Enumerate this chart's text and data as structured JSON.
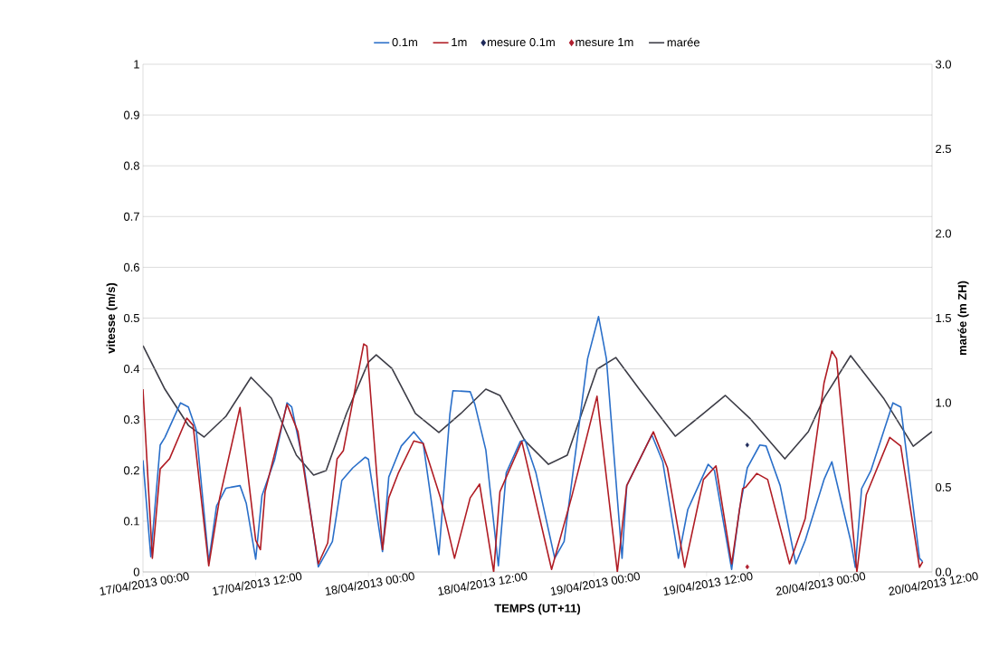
{
  "chart_data": {
    "type": "line",
    "xlabel": "TEMPS (UT+11)",
    "ylabel": "vitesse (m/s)",
    "y2label": "marée (m ZH)",
    "xlim": [
      "2013-04-17T00:00",
      "2013-04-20T12:00"
    ],
    "xticks": [
      {
        "value": "2013-04-17T00:00",
        "label": "17/04/2013 00:00"
      },
      {
        "value": "2013-04-17T12:00",
        "label": "17/04/2013 12:00"
      },
      {
        "value": "2013-04-18T00:00",
        "label": "18/04/2013 00:00"
      },
      {
        "value": "2013-04-18T12:00",
        "label": "18/04/2013 12:00"
      },
      {
        "value": "2013-04-19T00:00",
        "label": "19/04/2013 00:00"
      },
      {
        "value": "2013-04-19T12:00",
        "label": "19/04/2013 12:00"
      },
      {
        "value": "2013-04-20T00:00",
        "label": "20/04/2013 00:00"
      },
      {
        "value": "2013-04-20T12:00",
        "label": "20/04/2013 12:00"
      }
    ],
    "ylim": [
      0,
      1
    ],
    "yticks": [
      0,
      0.1,
      0.2,
      0.3,
      0.4,
      0.5,
      0.6,
      0.7,
      0.8,
      0.9,
      1
    ],
    "y2lim": [
      0,
      3
    ],
    "y2ticks": [
      {
        "value": 0,
        "label": "0.0"
      },
      0.5,
      {
        "value": 1,
        "label": "1.0"
      },
      1.5,
      {
        "value": 2,
        "label": "2.0"
      },
      2.5,
      {
        "value": 3,
        "label": "3.0"
      }
    ],
    "grid": "y",
    "legend": "top",
    "series": [
      {
        "name": "0.1m",
        "color": "#2a6fc9",
        "x": [
          "2013-04-17T00:00",
          "2013-04-17T00:50",
          "2013-04-17T01:50",
          "2013-04-17T02:20",
          "2013-04-17T04:00",
          "2013-04-17T04:50",
          "2013-04-17T05:40",
          "2013-04-17T07:00",
          "2013-04-17T07:50",
          "2013-04-17T08:50",
          "2013-04-17T10:20",
          "2013-04-17T11:00",
          "2013-04-17T12:00",
          "2013-04-17T12:40",
          "2013-04-17T14:00",
          "2013-04-17T15:20",
          "2013-04-17T15:50",
          "2013-04-17T17:10",
          "2013-04-17T18:40",
          "2013-04-17T20:10",
          "2013-04-17T21:10",
          "2013-04-17T22:20",
          "2013-04-17T23:40",
          "2013-04-18T00:00",
          "2013-04-18T01:30",
          "2013-04-18T02:10",
          "2013-04-18T03:30",
          "2013-04-18T04:50",
          "2013-04-18T05:50",
          "2013-04-18T07:30",
          "2013-04-18T08:40",
          "2013-04-18T09:00",
          "2013-04-18T10:50",
          "2013-04-18T11:20",
          "2013-04-18T12:30",
          "2013-04-18T13:50",
          "2013-04-18T14:40",
          "2013-04-18T16:10",
          "2013-04-18T16:40",
          "2013-04-18T17:50",
          "2013-04-18T19:50",
          "2013-04-18T20:50",
          "2013-04-18T22:30",
          "2013-04-18T23:20",
          "2013-04-19T00:30",
          "2013-04-19T01:20",
          "2013-04-19T03:00",
          "2013-04-19T03:30",
          "2013-04-19T06:10",
          "2013-04-19T07:20",
          "2013-04-19T09:00",
          "2013-04-19T10:00",
          "2013-04-19T12:10",
          "2013-04-19T12:50",
          "2013-04-19T14:40",
          "2013-04-19T15:30",
          "2013-04-19T16:20",
          "2013-04-19T17:40",
          "2013-04-19T18:20",
          "2013-04-19T19:50",
          "2013-04-19T21:30",
          "2013-04-19T22:30",
          "2013-04-20T00:30",
          "2013-04-20T01:20",
          "2013-04-20T03:20",
          "2013-04-20T03:50",
          "2013-04-20T04:30",
          "2013-04-20T05:30",
          "2013-04-20T07:50",
          "2013-04-20T08:40",
          "2013-04-20T10:40",
          "2013-04-20T11:00"
        ],
        "values": [
          0.22,
          0.03,
          0.25,
          0.265,
          0.333,
          0.325,
          0.28,
          0.02,
          0.13,
          0.165,
          0.17,
          0.135,
          0.025,
          0.15,
          0.22,
          0.333,
          0.325,
          0.205,
          0.01,
          0.06,
          0.18,
          0.205,
          0.226,
          0.222,
          0.04,
          0.187,
          0.248,
          0.276,
          0.253,
          0.034,
          0.31,
          0.357,
          0.355,
          0.33,
          0.24,
          0.012,
          0.195,
          0.257,
          0.26,
          0.195,
          0.027,
          0.06,
          0.3,
          0.42,
          0.503,
          0.42,
          0.027,
          0.17,
          0.27,
          0.217,
          0.027,
          0.123,
          0.212,
          0.2,
          0.005,
          0.123,
          0.205,
          0.25,
          0.248,
          0.17,
          0.016,
          0.062,
          0.182,
          0.217,
          0.062,
          0.009,
          0.164,
          0.2,
          0.333,
          0.325,
          0.027,
          0.02
        ]
      },
      {
        "name": "1m",
        "color": "#b01c24",
        "x": [
          "2013-04-17T00:00",
          "2013-04-17T01:00",
          "2013-04-17T01:50",
          "2013-04-17T02:50",
          "2013-04-17T04:40",
          "2013-04-17T05:20",
          "2013-04-17T07:00",
          "2013-04-17T08:10",
          "2013-04-17T10:20",
          "2013-04-17T12:00",
          "2013-04-17T12:30",
          "2013-04-17T13:00",
          "2013-04-17T15:20",
          "2013-04-17T16:30",
          "2013-04-17T18:40",
          "2013-04-17T19:40",
          "2013-04-17T20:40",
          "2013-04-17T21:20",
          "2013-04-17T23:30",
          "2013-04-17T23:50",
          "2013-04-18T01:30",
          "2013-04-18T02:10",
          "2013-04-18T03:10",
          "2013-04-18T04:50",
          "2013-04-18T05:50",
          "2013-04-18T07:40",
          "2013-04-18T09:10",
          "2013-04-18T10:50",
          "2013-04-18T11:50",
          "2013-04-18T13:20",
          "2013-04-18T14:00",
          "2013-04-18T16:20",
          "2013-04-18T19:30",
          "2013-04-18T21:40",
          "2013-04-19T00:20",
          "2013-04-19T02:30",
          "2013-04-19T03:30",
          "2013-04-19T06:20",
          "2013-04-19T07:50",
          "2013-04-19T09:40",
          "2013-04-19T11:40",
          "2013-04-19T13:00",
          "2013-04-19T14:40",
          "2013-04-19T15:50",
          "2013-04-19T16:10",
          "2013-04-19T17:20",
          "2013-04-19T18:30",
          "2013-04-19T20:50",
          "2013-04-19T22:30",
          "2013-04-20T00:30",
          "2013-04-20T01:20",
          "2013-04-20T01:50",
          "2013-04-20T04:00",
          "2013-04-20T05:00",
          "2013-04-20T07:30",
          "2013-04-20T08:40",
          "2013-04-20T10:40",
          "2013-04-20T11:00"
        ],
        "values": [
          0.36,
          0.027,
          0.203,
          0.223,
          0.303,
          0.289,
          0.012,
          0.146,
          0.324,
          0.062,
          0.044,
          0.158,
          0.33,
          0.276,
          0.016,
          0.057,
          0.223,
          0.239,
          0.449,
          0.445,
          0.044,
          0.146,
          0.194,
          0.258,
          0.253,
          0.146,
          0.027,
          0.146,
          0.173,
          0.0,
          0.158,
          0.257,
          0.005,
          0.15,
          0.346,
          0.0,
          0.17,
          0.276,
          0.205,
          0.009,
          0.182,
          0.209,
          0.016,
          0.164,
          0.167,
          0.194,
          0.182,
          0.016,
          0.105,
          0.372,
          0.435,
          0.42,
          0.0,
          0.152,
          0.265,
          0.248,
          0.009,
          0.02
        ]
      },
      {
        "name": "mesure 0.1m",
        "type": "scatter",
        "marker": "diamond",
        "color": "#1f2a5a",
        "x": [
          "2013-04-19T16:20"
        ],
        "values": [
          0.25
        ]
      },
      {
        "name": "mesure 1m",
        "type": "scatter",
        "marker": "diamond",
        "color": "#b02030",
        "x": [
          "2013-04-19T16:20"
        ],
        "values": [
          0.01
        ]
      },
      {
        "name": "marée",
        "axis": "y2",
        "color": "#3c3c46",
        "x": [
          "2013-04-17T00:00",
          "2013-04-17T02:20",
          "2013-04-17T04:50",
          "2013-04-17T06:30",
          "2013-04-17T08:50",
          "2013-04-17T11:30",
          "2013-04-17T13:40",
          "2013-04-17T16:20",
          "2013-04-17T18:10",
          "2013-04-17T19:30",
          "2013-04-17T21:40",
          "2013-04-18T00:00",
          "2013-04-18T00:50",
          "2013-04-18T02:30",
          "2013-04-18T05:00",
          "2013-04-18T07:30",
          "2013-04-18T09:50",
          "2013-04-18T12:30",
          "2013-04-18T14:00",
          "2013-04-18T16:40",
          "2013-04-18T19:10",
          "2013-04-18T21:10",
          "2013-04-19T00:20",
          "2013-04-19T02:20",
          "2013-04-19T04:50",
          "2013-04-19T08:40",
          "2013-04-19T11:40",
          "2013-04-19T14:00",
          "2013-04-19T16:40",
          "2013-04-19T20:20",
          "2013-04-19T22:50",
          "2013-04-20T00:30",
          "2013-04-20T03:20",
          "2013-04-20T06:50",
          "2013-04-20T10:00",
          "2013-04-20T12:00"
        ],
        "values": [
          1.337,
          1.08,
          0.866,
          0.797,
          0.92,
          1.15,
          1.027,
          0.69,
          0.572,
          0.599,
          0.936,
          1.24,
          1.283,
          1.203,
          0.936,
          0.824,
          0.936,
          1.08,
          1.043,
          0.775,
          0.636,
          0.69,
          1.198,
          1.267,
          1.08,
          0.802,
          0.936,
          1.043,
          0.904,
          0.668,
          0.829,
          1.027,
          1.278,
          1.027,
          0.743,
          0.829
        ]
      }
    ]
  }
}
